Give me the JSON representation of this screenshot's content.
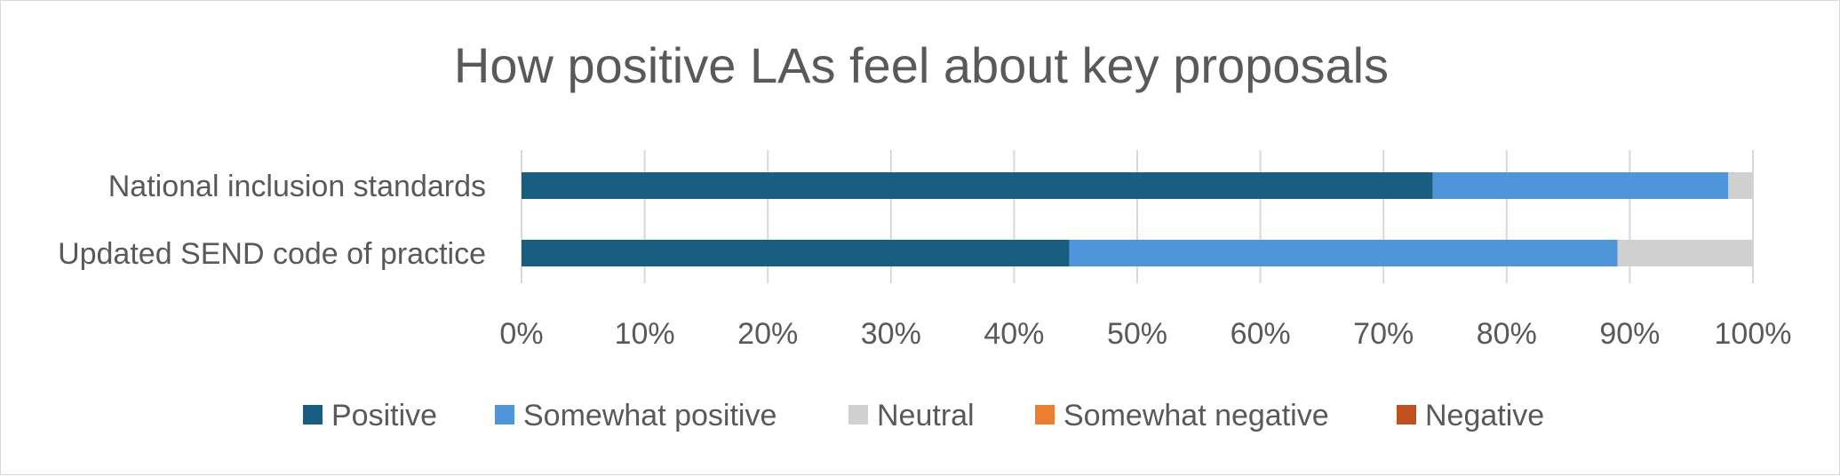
{
  "chart_data": {
    "type": "bar",
    "orientation": "horizontal",
    "stacked": "percent",
    "title": "How positive LAs feel about key proposals",
    "categories": [
      "National inclusion standards",
      "Updated SEND code of practice"
    ],
    "series": [
      {
        "name": "Positive",
        "color": "#175e81",
        "values": [
          74,
          44.5
        ]
      },
      {
        "name": "Somewhat positive",
        "color": "#4e95d9",
        "values": [
          24,
          44.5
        ]
      },
      {
        "name": "Neutral",
        "color": "#d0d0d0",
        "values": [
          2,
          11
        ]
      },
      {
        "name": "Somewhat negative",
        "color": "#ed7d31",
        "values": [
          0,
          0
        ]
      },
      {
        "name": "Negative",
        "color": "#c0501e",
        "values": [
          0,
          0
        ]
      }
    ],
    "xlim": [
      0,
      100
    ],
    "x_ticks": [
      "0%",
      "10%",
      "20%",
      "30%",
      "40%",
      "50%",
      "60%",
      "70%",
      "80%",
      "90%",
      "100%"
    ],
    "grid": true,
    "legend_position": "bottom"
  }
}
